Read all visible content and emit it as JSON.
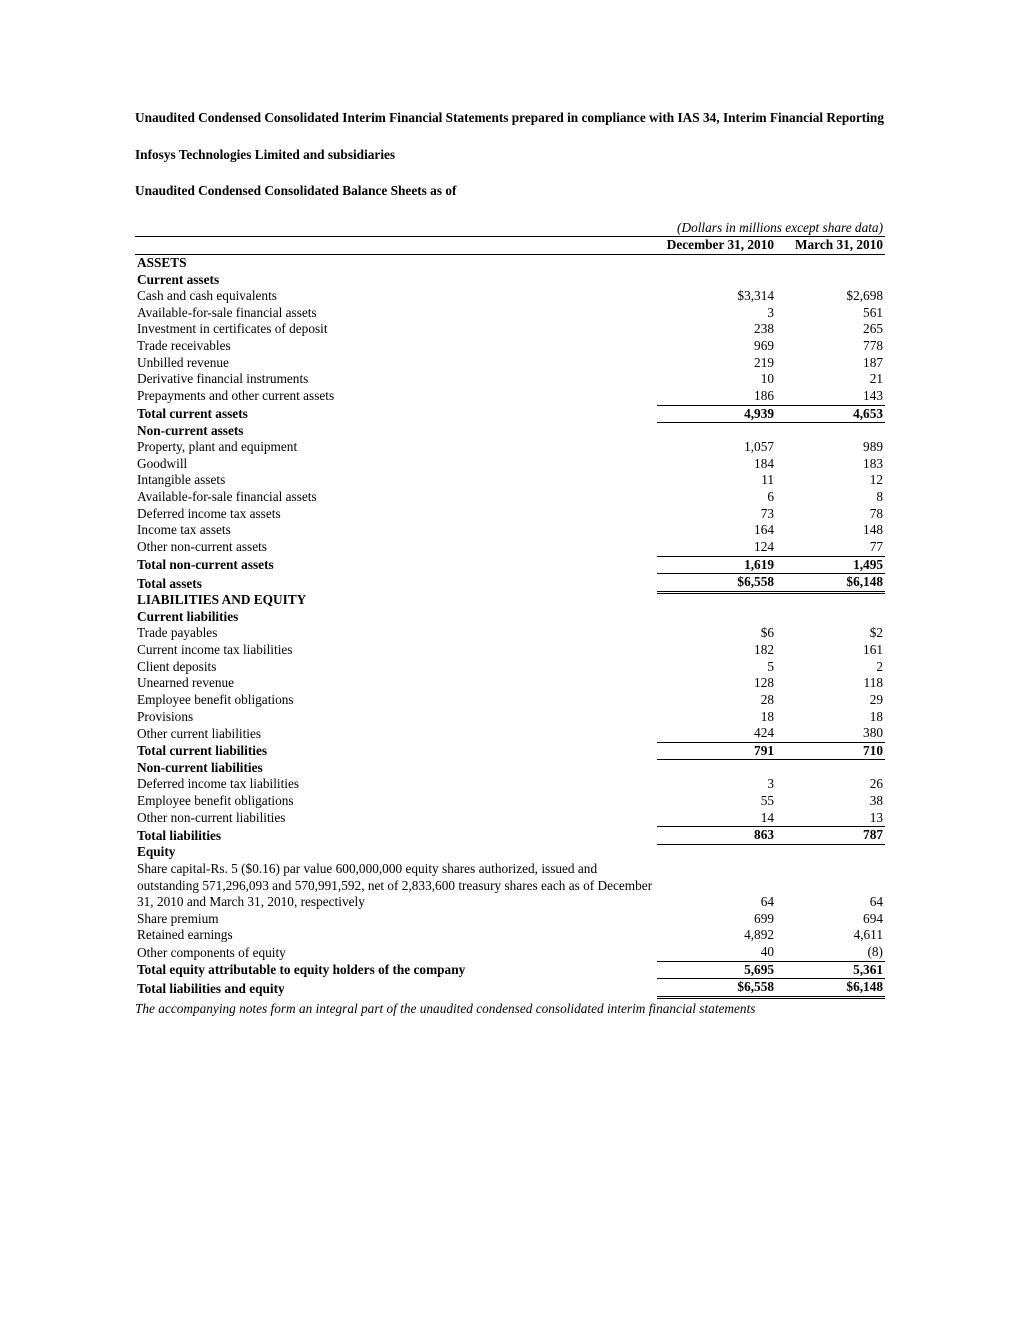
{
  "header": {
    "title": "Unaudited Condensed Consolidated Interim Financial Statements prepared in compliance with IAS 34, Interim Financial Reporting",
    "company": "Infosys Technologies Limited and subsidiaries",
    "statement_name": "Unaudited Condensed Consolidated Balance Sheets as of"
  },
  "table": {
    "units_note": "(Dollars in millions except share data)",
    "col_headers": [
      "December  31, 2010",
      "March 31, 2010"
    ],
    "sections": [
      {
        "label": "ASSETS",
        "bold": true,
        "type": "heading"
      },
      {
        "label": "Current assets",
        "bold": true,
        "type": "heading"
      },
      {
        "label": "Cash and cash equivalents",
        "c1": "$3,314",
        "c2": "$2,698"
      },
      {
        "label": "Available-for-sale financial assets",
        "c1": "3",
        "c2": "561"
      },
      {
        "label": "Investment in certificates of deposit",
        "c1": "238",
        "c2": "265"
      },
      {
        "label": "Trade receivables",
        "c1": "969",
        "c2": "778"
      },
      {
        "label": "Unbilled revenue",
        "c1": "219",
        "c2": "187"
      },
      {
        "label": "Derivative financial instruments",
        "c1": "10",
        "c2": "21"
      },
      {
        "label": "Prepayments and other current assets",
        "c1": "186",
        "c2": "143"
      },
      {
        "label": "Total current assets",
        "bold": true,
        "c1": "4,939",
        "c2": "4,653",
        "rule": "subtotal"
      },
      {
        "label": "Non-current assets",
        "bold": true,
        "type": "heading"
      },
      {
        "label": "Property, plant and equipment",
        "c1": "1,057",
        "c2": "989"
      },
      {
        "label": "Goodwill",
        "c1": "184",
        "c2": "183"
      },
      {
        "label": "Intangible assets",
        "c1": "11",
        "c2": "12"
      },
      {
        "label": "Available-for-sale financial assets",
        "c1": "6",
        "c2": "8"
      },
      {
        "label": "Deferred income tax assets",
        "c1": "73",
        "c2": "78"
      },
      {
        "label": "Income tax assets",
        "c1": "164",
        "c2": "148"
      },
      {
        "label": "Other non-current assets",
        "c1": "124",
        "c2": "77"
      },
      {
        "label": "Total non-current assets",
        "bold": true,
        "c1": "1,619",
        "c2": "1,495",
        "rule": "subtotal"
      },
      {
        "label": "Total assets",
        "bold": true,
        "c1": "$6,558",
        "c2": "$6,148",
        "rule": "grandtotal"
      },
      {
        "label": "LIABILITIES AND EQUITY",
        "bold": true,
        "type": "heading"
      },
      {
        "label": "Current liabilities",
        "bold": true,
        "type": "heading"
      },
      {
        "label": "Trade payables",
        "c1": "$6",
        "c2": "$2"
      },
      {
        "label": "Current income tax liabilities",
        "c1": "182",
        "c2": "161"
      },
      {
        "label": "Client deposits",
        "c1": "5",
        "c2": "2"
      },
      {
        "label": "Unearned revenue",
        "c1": "128",
        "c2": "118"
      },
      {
        "label": "Employee benefit obligations",
        "c1": "28",
        "c2": "29"
      },
      {
        "label": "Provisions",
        "c1": "18",
        "c2": "18"
      },
      {
        "label": "Other current liabilities",
        "c1": "424",
        "c2": "380"
      },
      {
        "label": "Total current liabilities",
        "bold": true,
        "c1": "791",
        "c2": "710",
        "rule": "subtotal"
      },
      {
        "label": "Non-current liabilities",
        "bold": true,
        "type": "heading"
      },
      {
        "label": "Deferred income tax liabilities",
        "c1": "3",
        "c2": "26"
      },
      {
        "label": "Employee benefit obligations",
        "c1": "55",
        "c2": "38"
      },
      {
        "label": "Other non-current liabilities",
        "c1": "14",
        "c2": "13"
      },
      {
        "label": "Total liabilities",
        "bold": true,
        "c1": "863",
        "c2": "787",
        "rule": "subtotal"
      },
      {
        "label": "Equity",
        "bold": true,
        "type": "heading"
      },
      {
        "label": "Share capital-Rs. 5 ($0.16) par value 600,000,000 equity shares authorized, issued and outstanding 571,296,093 and 570,991,592, net of 2,833,600 treasury shares each as of December 31, 2010 and March 31, 2010, respectively",
        "c1": "64",
        "c2": "64"
      },
      {
        "label": "Share premium",
        "c1": "699",
        "c2": "694"
      },
      {
        "label": "Retained earnings",
        "c1": "4,892",
        "c2": "4,611"
      },
      {
        "label": "Other components of equity",
        "c1": "40",
        "c2": "(8)"
      },
      {
        "label": "Total equity attributable to equity holders of the company",
        "bold": true,
        "c1": "5,695",
        "c2": "5,361",
        "rule": "subtotal"
      },
      {
        "label": "Total liabilities and equity",
        "bold": true,
        "c1": "$6,558",
        "c2": "$6,148",
        "rule": "grandtotal"
      }
    ]
  },
  "footnote": "The accompanying notes form an integral part of the unaudited condensed consolidated interim financial statements"
}
